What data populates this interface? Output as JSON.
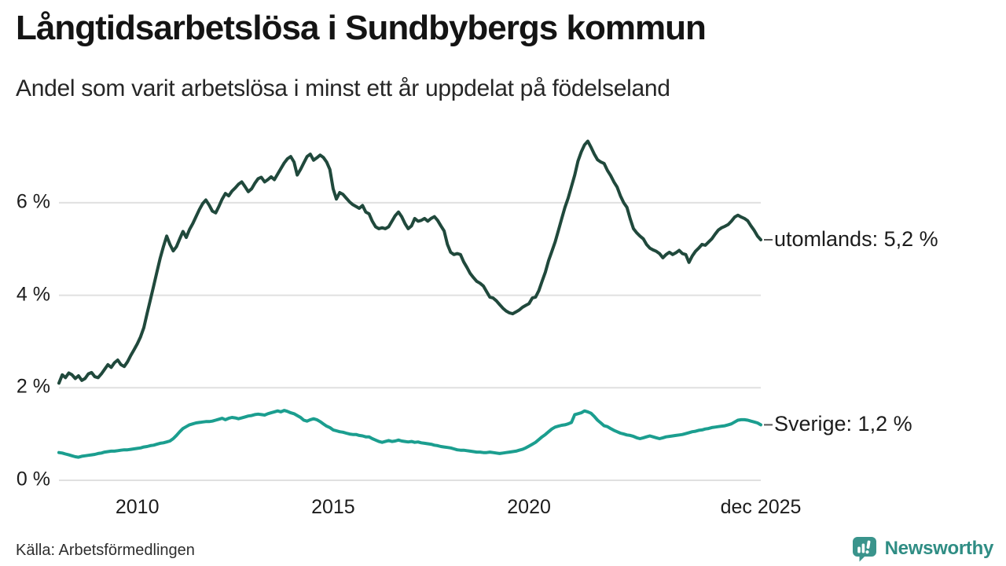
{
  "header": {
    "title": "Långtidsarbetslösa i Sundbybergs kommun",
    "subtitle": "Andel som varit arbetslösa i minst ett år uppdelat på födelseland"
  },
  "footer": {
    "source": "Källa: Arbetsförmedlingen"
  },
  "logo": {
    "text": "Newsworthy",
    "text_color": "#2f8d84",
    "icon_color": "#3a948c",
    "icon_name": "newsworthy-chart-bubble-icon"
  },
  "chart_data": {
    "type": "line",
    "title": "Långtidsarbetslösa i Sundbybergs kommun",
    "subtitle": "Andel som varit arbetslösa i minst ett år uppdelat på födelseland",
    "source": "Källa: Arbetsförmedlingen",
    "x_unit": "month",
    "x_range": [
      "2008-01",
      "2025-12"
    ],
    "ylim": [
      0,
      7.6
    ],
    "grid": "horizontal",
    "gridline_color": "#e0e0e0",
    "legend_position": "end-of-line-labels",
    "yticks": [
      {
        "value": 0,
        "label": "0 %"
      },
      {
        "value": 2,
        "label": "2 %"
      },
      {
        "value": 4,
        "label": "4 %"
      },
      {
        "value": 6,
        "label": "6 %"
      }
    ],
    "xticks": [
      {
        "x": "2010-01",
        "label": "2010"
      },
      {
        "x": "2015-01",
        "label": "2015"
      },
      {
        "x": "2020-01",
        "label": "2020"
      },
      {
        "x": "2025-12",
        "label": "dec 2025"
      }
    ],
    "series": [
      {
        "name": "utomlands",
        "label": "utomlands: 5,2 %",
        "end_value": "5,2 %",
        "color": "#20493c",
        "values": [
          2.1,
          2.28,
          2.22,
          2.32,
          2.28,
          2.2,
          2.26,
          2.16,
          2.2,
          2.3,
          2.33,
          2.24,
          2.22,
          2.3,
          2.4,
          2.5,
          2.44,
          2.54,
          2.6,
          2.5,
          2.46,
          2.56,
          2.7,
          2.82,
          2.95,
          3.1,
          3.3,
          3.6,
          3.9,
          4.2,
          4.5,
          4.8,
          5.05,
          5.28,
          5.1,
          4.96,
          5.05,
          5.22,
          5.38,
          5.25,
          5.42,
          5.55,
          5.7,
          5.85,
          5.98,
          6.06,
          5.95,
          5.82,
          5.78,
          5.92,
          6.08,
          6.2,
          6.15,
          6.25,
          6.32,
          6.4,
          6.45,
          6.35,
          6.24,
          6.3,
          6.42,
          6.52,
          6.55,
          6.45,
          6.5,
          6.56,
          6.5,
          6.62,
          6.74,
          6.86,
          6.95,
          7.0,
          6.88,
          6.6,
          6.72,
          6.86,
          7.0,
          7.05,
          6.92,
          6.97,
          7.03,
          6.98,
          6.88,
          6.72,
          6.3,
          6.08,
          6.22,
          6.18,
          6.1,
          6.02,
          5.96,
          5.92,
          5.88,
          5.94,
          5.8,
          5.76,
          5.6,
          5.48,
          5.44,
          5.46,
          5.44,
          5.48,
          5.6,
          5.72,
          5.8,
          5.7,
          5.55,
          5.44,
          5.5,
          5.66,
          5.6,
          5.62,
          5.66,
          5.6,
          5.66,
          5.7,
          5.62,
          5.5,
          5.39,
          5.1,
          4.93,
          4.88,
          4.9,
          4.88,
          4.72,
          4.6,
          4.47,
          4.38,
          4.3,
          4.26,
          4.2,
          4.08,
          3.96,
          3.94,
          3.88,
          3.8,
          3.72,
          3.66,
          3.62,
          3.6,
          3.64,
          3.68,
          3.74,
          3.78,
          3.82,
          3.94,
          3.96,
          4.1,
          4.3,
          4.5,
          4.75,
          4.95,
          5.15,
          5.4,
          5.65,
          5.9,
          6.1,
          6.35,
          6.6,
          6.9,
          7.1,
          7.25,
          7.33,
          7.2,
          7.05,
          6.93,
          6.88,
          6.85,
          6.7,
          6.59,
          6.45,
          6.34,
          6.15,
          6.0,
          5.9,
          5.65,
          5.44,
          5.35,
          5.28,
          5.22,
          5.1,
          5.02,
          4.98,
          4.95,
          4.9,
          4.81,
          4.88,
          4.93,
          4.88,
          4.92,
          4.97,
          4.9,
          4.88,
          4.71,
          4.85,
          4.95,
          5.02,
          5.1,
          5.08,
          5.15,
          5.22,
          5.32,
          5.41,
          5.46,
          5.49,
          5.53,
          5.6,
          5.69,
          5.73,
          5.69,
          5.66,
          5.61,
          5.5,
          5.4,
          5.28,
          5.2
        ]
      },
      {
        "name": "Sverige",
        "label": "Sverige: 1,2 %",
        "end_value": "1,2 %",
        "color": "#1b9e8f",
        "values": [
          0.6,
          0.59,
          0.57,
          0.55,
          0.53,
          0.51,
          0.5,
          0.52,
          0.53,
          0.54,
          0.55,
          0.56,
          0.58,
          0.59,
          0.61,
          0.62,
          0.63,
          0.63,
          0.64,
          0.65,
          0.66,
          0.66,
          0.67,
          0.68,
          0.69,
          0.7,
          0.72,
          0.73,
          0.75,
          0.76,
          0.78,
          0.8,
          0.81,
          0.83,
          0.85,
          0.9,
          0.97,
          1.05,
          1.12,
          1.16,
          1.2,
          1.22,
          1.24,
          1.25,
          1.26,
          1.27,
          1.27,
          1.28,
          1.3,
          1.32,
          1.34,
          1.31,
          1.34,
          1.36,
          1.35,
          1.33,
          1.35,
          1.37,
          1.39,
          1.4,
          1.42,
          1.43,
          1.42,
          1.41,
          1.44,
          1.46,
          1.48,
          1.5,
          1.48,
          1.51,
          1.49,
          1.46,
          1.44,
          1.4,
          1.36,
          1.3,
          1.28,
          1.31,
          1.33,
          1.31,
          1.27,
          1.22,
          1.17,
          1.14,
          1.09,
          1.07,
          1.05,
          1.04,
          1.02,
          1.0,
          0.99,
          0.99,
          0.97,
          0.96,
          0.94,
          0.94,
          0.9,
          0.87,
          0.84,
          0.82,
          0.84,
          0.86,
          0.84,
          0.85,
          0.87,
          0.85,
          0.84,
          0.83,
          0.84,
          0.82,
          0.83,
          0.81,
          0.8,
          0.79,
          0.78,
          0.76,
          0.75,
          0.73,
          0.72,
          0.71,
          0.7,
          0.68,
          0.66,
          0.65,
          0.65,
          0.64,
          0.63,
          0.62,
          0.61,
          0.61,
          0.6,
          0.6,
          0.61,
          0.6,
          0.59,
          0.58,
          0.59,
          0.6,
          0.61,
          0.62,
          0.63,
          0.65,
          0.67,
          0.7,
          0.74,
          0.78,
          0.82,
          0.88,
          0.94,
          0.99,
          1.05,
          1.11,
          1.15,
          1.17,
          1.19,
          1.2,
          1.22,
          1.25,
          1.42,
          1.44,
          1.46,
          1.5,
          1.48,
          1.45,
          1.38,
          1.3,
          1.24,
          1.18,
          1.16,
          1.12,
          1.08,
          1.05,
          1.02,
          1.0,
          0.98,
          0.97,
          0.95,
          0.92,
          0.9,
          0.92,
          0.94,
          0.96,
          0.94,
          0.92,
          0.9,
          0.92,
          0.94,
          0.95,
          0.96,
          0.97,
          0.98,
          0.99,
          1.01,
          1.03,
          1.05,
          1.06,
          1.08,
          1.09,
          1.11,
          1.12,
          1.14,
          1.15,
          1.16,
          1.17,
          1.18,
          1.2,
          1.22,
          1.26,
          1.3,
          1.31,
          1.31,
          1.3,
          1.28,
          1.26,
          1.24,
          1.2
        ]
      }
    ]
  }
}
